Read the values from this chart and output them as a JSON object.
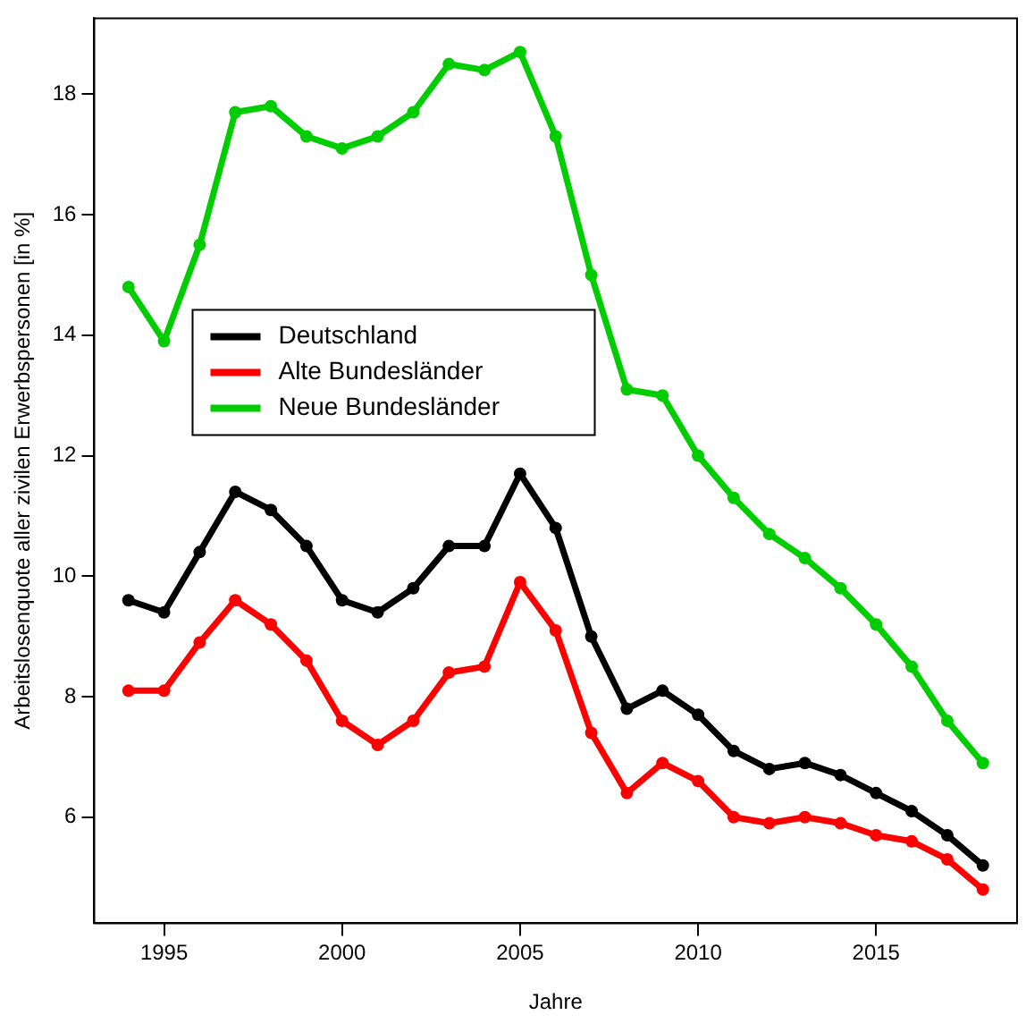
{
  "chart_data": {
    "type": "line",
    "xlabel": "Jahre",
    "ylabel": "Arbeitslosenquote aller zivilen Erwerbspersonen [in %]",
    "x": [
      1994,
      1995,
      1996,
      1997,
      1998,
      1999,
      2000,
      2001,
      2002,
      2003,
      2004,
      2005,
      2006,
      2007,
      2008,
      2009,
      2010,
      2011,
      2012,
      2013,
      2014,
      2015,
      2016,
      2017,
      2018
    ],
    "series": [
      {
        "name": "Deutschland",
        "color": "#000000",
        "values": [
          9.6,
          9.4,
          10.4,
          11.4,
          11.1,
          10.5,
          9.6,
          9.4,
          9.8,
          10.5,
          10.5,
          11.7,
          10.8,
          9.0,
          7.8,
          8.1,
          7.7,
          7.1,
          6.8,
          6.9,
          6.7,
          6.4,
          6.1,
          5.7,
          5.2
        ]
      },
      {
        "name": "Alte Bundesländer",
        "color": "#ff0000",
        "values": [
          8.1,
          8.1,
          8.9,
          9.6,
          9.2,
          8.6,
          7.6,
          7.2,
          7.6,
          8.4,
          8.5,
          9.9,
          9.1,
          7.4,
          6.4,
          6.9,
          6.6,
          6.0,
          5.9,
          6.0,
          5.9,
          5.7,
          5.6,
          5.3,
          4.8
        ]
      },
      {
        "name": "Neue Bundesländer",
        "color": "#00cd00",
        "values": [
          14.8,
          13.9,
          15.5,
          17.7,
          17.8,
          17.3,
          17.1,
          17.3,
          17.7,
          18.5,
          18.4,
          18.7,
          17.3,
          15.0,
          13.1,
          13.0,
          12.0,
          11.3,
          10.7,
          10.3,
          9.8,
          9.2,
          8.5,
          7.6,
          6.9
        ]
      }
    ],
    "xlim": [
      1993.04,
      2018.96
    ],
    "xticks": [
      1995,
      2000,
      2005,
      2010,
      2015
    ],
    "ylim": [
      4.24,
      19.26
    ],
    "yticks": [
      6,
      8,
      10,
      12,
      14,
      16,
      18
    ],
    "grid": false,
    "legend": "left",
    "marker": "circle",
    "line_style": "solid"
  }
}
